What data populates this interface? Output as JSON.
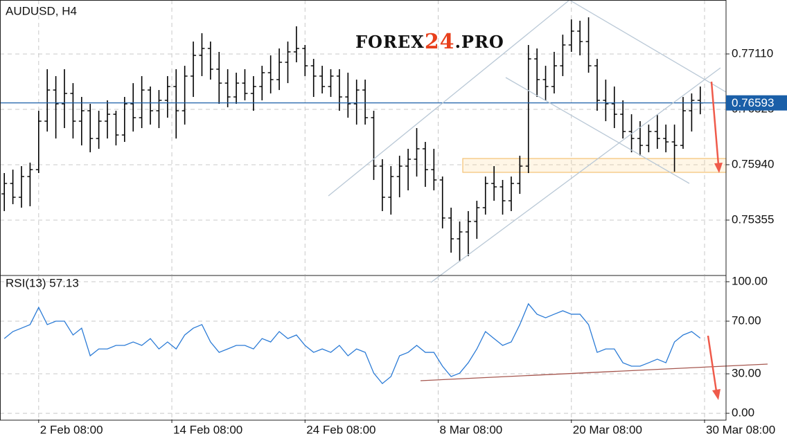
{
  "chart_data": [
    {
      "type": "ohlc",
      "title": "AUDUSD, H4",
      "logo": [
        "FOREX",
        "24",
        ".PRO"
      ],
      "color": "#000000",
      "xlim": [
        -0.5,
        84
      ],
      "xticks": [
        {
          "value": 4,
          "label": "2 Feb 08:00"
        },
        {
          "value": 19.5,
          "label": "14 Feb 08:00"
        },
        {
          "value": 35,
          "label": "24 Feb 08:00"
        },
        {
          "value": 50.5,
          "label": "8 Mar 08:00"
        },
        {
          "value": 66,
          "label": "20 Mar 08:00"
        },
        {
          "value": 81.5,
          "label": "30 Mar 08:00"
        }
      ],
      "ylim": [
        0.74777,
        0.7768
      ],
      "yticks": [
        {
          "value": 0.7711,
          "label": "0.77110"
        },
        {
          "value": 0.76525,
          "label": "0.76525"
        },
        {
          "value": 0.7594,
          "label": "0.75940"
        },
        {
          "value": 0.75355,
          "label": "0.75355"
        }
      ],
      "grid": true,
      "price_line": {
        "value": 0.76593,
        "color": "#1a5fa8"
      },
      "x": [
        0,
        1,
        2,
        3,
        4,
        5,
        6,
        7,
        8,
        9,
        10,
        11,
        12,
        13,
        14,
        15,
        16,
        17,
        18,
        19,
        20,
        21,
        22,
        23,
        24,
        25,
        26,
        27,
        28,
        29,
        30,
        31,
        32,
        33,
        34,
        35,
        36,
        37,
        38,
        39,
        40,
        41,
        42,
        43,
        44,
        45,
        46,
        47,
        48,
        49,
        50,
        51,
        52,
        53,
        54,
        55,
        56,
        57,
        58,
        59,
        60,
        61,
        62,
        63,
        64,
        65,
        66,
        67,
        68,
        69,
        70,
        71,
        72,
        73,
        74,
        75,
        76,
        77,
        78,
        79,
        80,
        81
      ],
      "open": [
        0.75632,
        0.75742,
        0.75596,
        0.75815,
        0.75888,
        0.764,
        0.76729,
        0.76583,
        0.76693,
        0.764,
        0.7651,
        0.76217,
        0.764,
        0.76473,
        0.76254,
        0.76583,
        0.76437,
        0.76729,
        0.7651,
        0.7662,
        0.76766,
        0.7651,
        0.76876,
        0.77095,
        0.77168,
        0.76949,
        0.76802,
        0.76656,
        0.76802,
        0.76693,
        0.76766,
        0.76912,
        0.76839,
        0.77022,
        0.77132,
        0.77168,
        0.76985,
        0.76876,
        0.76766,
        0.76876,
        0.76656,
        0.76583,
        0.76729,
        0.76437,
        0.75925,
        0.75596,
        0.75815,
        0.75925,
        0.75998,
        0.76108,
        0.75888,
        0.75779,
        0.75377,
        0.75157,
        0.7523,
        0.7534,
        0.75486,
        0.75742,
        0.75706,
        0.75559,
        0.75742,
        0.75925,
        0.77058,
        0.76839,
        0.76766,
        0.76985,
        0.77205,
        0.77351,
        0.77241,
        0.76985,
        0.7662,
        0.76583,
        0.76473,
        0.76291,
        0.76217,
        0.76144,
        0.76291,
        0.76217,
        0.76181,
        0.76144,
        0.7651,
        0.7662
      ],
      "high": [
        0.75852,
        0.75888,
        0.75925,
        0.75962,
        0.7651,
        0.76949,
        0.76876,
        0.76949,
        0.76802,
        0.76656,
        0.76583,
        0.7651,
        0.7662,
        0.7651,
        0.76656,
        0.76802,
        0.76876,
        0.76766,
        0.76729,
        0.76876,
        0.76949,
        0.76985,
        0.77241,
        0.77329,
        0.77241,
        0.77132,
        0.76949,
        0.76912,
        0.76949,
        0.76876,
        0.76985,
        0.77095,
        0.77168,
        0.77241,
        0.77402,
        0.77205,
        0.77058,
        0.76985,
        0.76949,
        0.76949,
        0.76912,
        0.76839,
        0.76839,
        0.7651,
        0.75998,
        0.75925,
        0.76035,
        0.76108,
        0.76327,
        0.76181,
        0.76108,
        0.75815,
        0.75486,
        0.7534,
        0.7545,
        0.75559,
        0.75815,
        0.75925,
        0.75779,
        0.75815,
        0.76035,
        0.77205,
        0.77168,
        0.76985,
        0.77132,
        0.77314,
        0.77475,
        0.77461,
        0.77497,
        0.77058,
        0.76839,
        0.76766,
        0.7662,
        0.76473,
        0.764,
        0.76364,
        0.76473,
        0.76364,
        0.76364,
        0.76656,
        0.76693,
        0.76766
      ],
      "low": [
        0.7545,
        0.75523,
        0.75486,
        0.75501,
        0.75852,
        0.76291,
        0.76217,
        0.76327,
        0.76217,
        0.76144,
        0.76071,
        0.76108,
        0.76217,
        0.76144,
        0.76181,
        0.76291,
        0.76327,
        0.76364,
        0.76327,
        0.76437,
        0.76217,
        0.76364,
        0.76656,
        0.76876,
        0.76839,
        0.76583,
        0.76547,
        0.76583,
        0.7662,
        0.7651,
        0.7662,
        0.76693,
        0.76729,
        0.76802,
        0.77022,
        0.76876,
        0.76656,
        0.76693,
        0.76656,
        0.7651,
        0.76437,
        0.76364,
        0.76364,
        0.75779,
        0.7545,
        0.75413,
        0.75596,
        0.75669,
        0.75815,
        0.75706,
        0.75669,
        0.75267,
        0.75011,
        0.74916,
        0.74974,
        0.75157,
        0.75413,
        0.75559,
        0.75413,
        0.7545,
        0.75632,
        0.75852,
        0.76656,
        0.7662,
        0.76693,
        0.76876,
        0.77132,
        0.77095,
        0.76912,
        0.7651,
        0.764,
        0.76327,
        0.76217,
        0.76071,
        0.76035,
        0.76071,
        0.76108,
        0.76071,
        0.75866,
        0.76108,
        0.76291,
        0.76473
      ],
      "close": [
        0.75742,
        0.75596,
        0.75815,
        0.75888,
        0.764,
        0.76729,
        0.76583,
        0.76693,
        0.764,
        0.7651,
        0.76217,
        0.764,
        0.76473,
        0.76254,
        0.76583,
        0.76437,
        0.76729,
        0.7651,
        0.7662,
        0.76766,
        0.7651,
        0.76876,
        0.77095,
        0.77168,
        0.76949,
        0.76802,
        0.76656,
        0.76802,
        0.76693,
        0.76766,
        0.76912,
        0.76839,
        0.77022,
        0.77132,
        0.77168,
        0.76985,
        0.76876,
        0.76766,
        0.76876,
        0.76656,
        0.76583,
        0.76729,
        0.76437,
        0.75925,
        0.75596,
        0.75815,
        0.75925,
        0.75998,
        0.76108,
        0.75888,
        0.75779,
        0.75377,
        0.75157,
        0.7523,
        0.7534,
        0.75486,
        0.75742,
        0.75706,
        0.75559,
        0.75742,
        0.75925,
        0.77058,
        0.76839,
        0.76766,
        0.76985,
        0.77205,
        0.77351,
        0.77241,
        0.76985,
        0.7662,
        0.76583,
        0.76473,
        0.76291,
        0.76217,
        0.76144,
        0.76291,
        0.76217,
        0.76181,
        0.76144,
        0.7651,
        0.7662,
        0.76593
      ]
    },
    {
      "type": "line",
      "title": "RSI(13) 57.13",
      "color": "#2b7bd6",
      "xlim": [
        -0.5,
        84
      ],
      "ylim": [
        -4.7,
        104.2
      ],
      "yticks": [
        {
          "value": 100,
          "label": "100.00"
        },
        {
          "value": 70,
          "label": "70.00"
        },
        {
          "value": 30,
          "label": "30.00"
        },
        {
          "value": 0,
          "label": "0.00"
        }
      ],
      "x": [
        0,
        1,
        2,
        3,
        4,
        5,
        6,
        7,
        8,
        9,
        10,
        11,
        12,
        13,
        14,
        15,
        16,
        17,
        18,
        19,
        20,
        21,
        22,
        23,
        24,
        25,
        26,
        27,
        28,
        29,
        30,
        31,
        32,
        33,
        34,
        35,
        36,
        37,
        38,
        39,
        40,
        41,
        42,
        43,
        44,
        45,
        46,
        47,
        48,
        49,
        50,
        51,
        52,
        53,
        54,
        55,
        56,
        57,
        58,
        59,
        60,
        61,
        62,
        63,
        64,
        65,
        66,
        67,
        68,
        69,
        70,
        71,
        72,
        73,
        74,
        75,
        76,
        77,
        78,
        79,
        80,
        81
      ],
      "values": [
        56.8,
        62.1,
        64.7,
        67.4,
        80.5,
        67.4,
        70.0,
        70.0,
        59.5,
        64.7,
        43.7,
        48.9,
        48.9,
        51.6,
        51.6,
        54.2,
        51.6,
        56.8,
        48.9,
        54.2,
        48.9,
        59.5,
        64.7,
        67.4,
        54.2,
        46.3,
        48.9,
        51.6,
        51.6,
        48.9,
        56.8,
        54.2,
        62.1,
        56.8,
        59.5,
        51.6,
        46.3,
        48.9,
        46.3,
        51.6,
        43.7,
        48.9,
        46.3,
        30.5,
        22.6,
        27.9,
        43.7,
        46.3,
        51.6,
        46.3,
        46.3,
        35.8,
        27.9,
        30.5,
        38.4,
        48.9,
        62.1,
        56.8,
        51.6,
        54.2,
        67.4,
        83.2,
        75.3,
        72.6,
        75.3,
        77.9,
        75.3,
        75.3,
        67.4,
        46.3,
        48.9,
        48.9,
        38.4,
        35.8,
        35.8,
        38.4,
        41.1,
        38.4,
        54.2,
        59.5,
        62.1,
        57.13
      ]
    }
  ]
}
